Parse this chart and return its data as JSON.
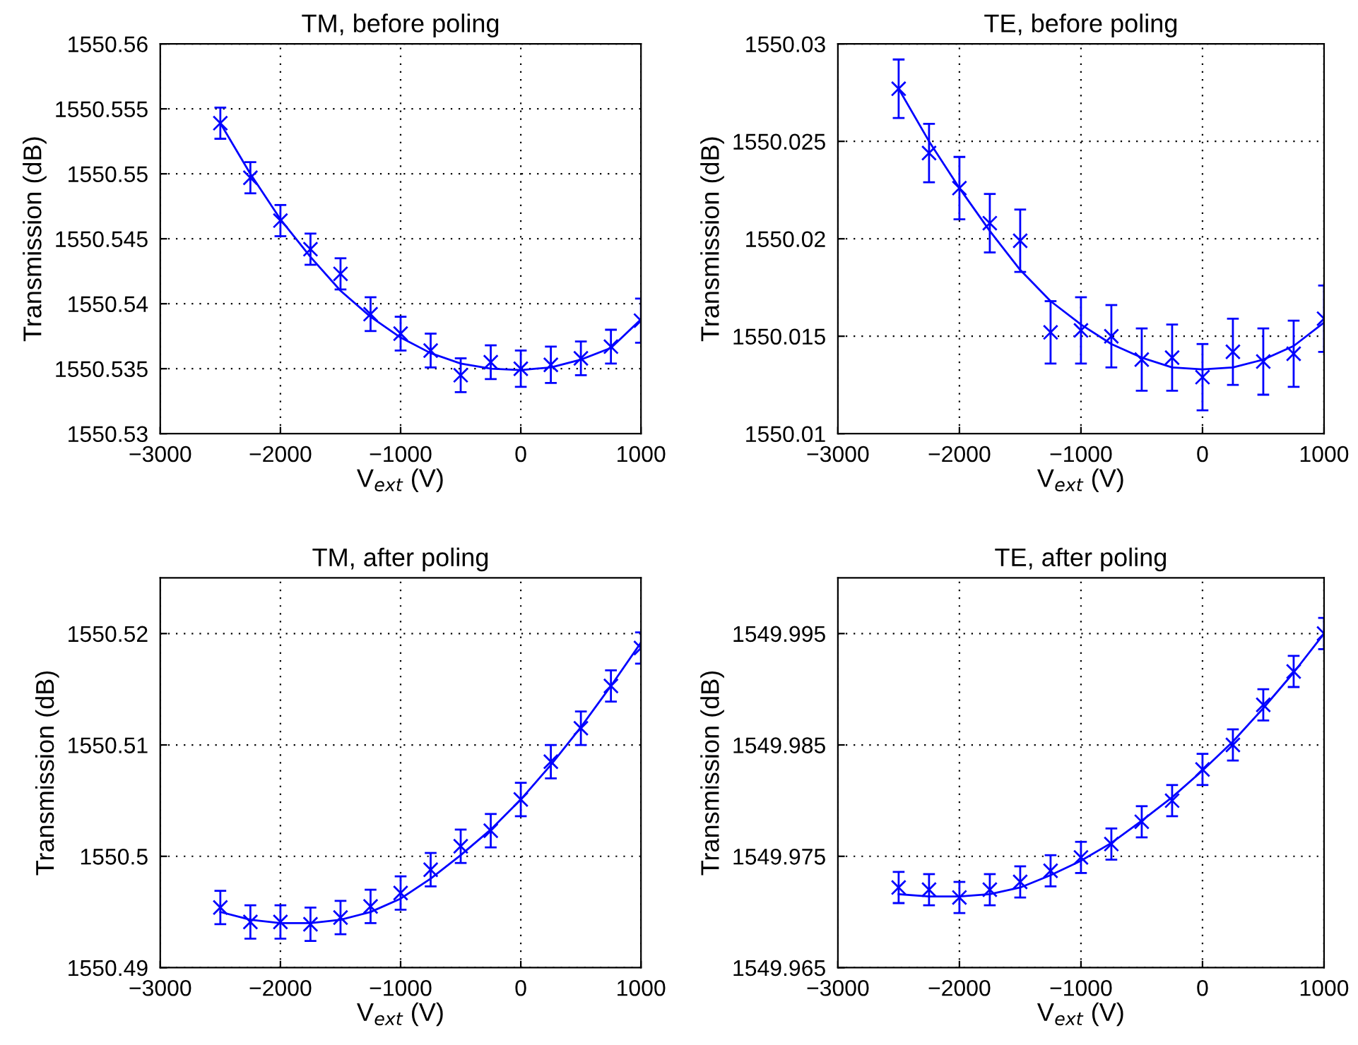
{
  "chart_data": [
    {
      "type": "scatter",
      "title": "TM, before poling",
      "xlabel": "V$_{ext}$ (V)",
      "ylabel": "Transmission (dB)",
      "xlim": [
        -3000,
        1000
      ],
      "xticks": [
        {
          "value": -3000,
          "label": "−3000"
        },
        {
          "value": -2000,
          "label": "−2000"
        },
        {
          "value": -1000,
          "label": "−1000"
        },
        0,
        1000
      ],
      "ylim": [
        1550.53,
        1550.56
      ],
      "yticks": [
        1550.53,
        1550.535,
        1550.54,
        1550.545,
        1550.55,
        1550.555,
        1550.56
      ],
      "grid": true,
      "series": [
        {
          "color": "#0000ff",
          "marker": "cross",
          "x": [
            -2500,
            -2250,
            -2000,
            -1750,
            -1500,
            -1250,
            -1000,
            -750,
            -500,
            -250,
            0,
            250,
            500,
            750,
            1000
          ],
          "values": [
            1550.5539,
            1550.5497,
            1550.5464,
            1550.5442,
            1550.5423,
            1550.5392,
            1550.5377,
            1550.5364,
            1550.5345,
            1550.5355,
            1550.535,
            1550.5353,
            1550.5358,
            1550.5367,
            1550.5387
          ],
          "errors": [
            0.0012,
            0.0012,
            0.0012,
            0.0012,
            0.0012,
            0.0013,
            0.0013,
            0.0013,
            0.0013,
            0.0013,
            0.0014,
            0.0014,
            0.0013,
            0.0013,
            0.0017
          ]
        },
        {
          "type": "line",
          "color": "#0000ff",
          "x": [
            -2500,
            -2250,
            -2000,
            -1750,
            -1500,
            -1250,
            -1000,
            -750,
            -500,
            -250,
            0,
            250,
            500,
            750,
            1000
          ],
          "values": [
            1550.5539,
            1550.55,
            1550.5465,
            1550.5436,
            1550.541,
            1550.539,
            1550.5374,
            1550.5362,
            1550.5354,
            1550.535,
            1550.5349,
            1550.5351,
            1550.5357,
            1550.5366,
            1550.5388
          ]
        }
      ]
    },
    {
      "type": "scatter",
      "title": "TE, before poling",
      "xlabel": "V$_{ext}$ (V)",
      "ylabel": "Transmission (dB)",
      "xlim": [
        -3000,
        1000
      ],
      "xticks": [
        {
          "value": -3000,
          "label": "−3000"
        },
        {
          "value": -2000,
          "label": "−2000"
        },
        {
          "value": -1000,
          "label": "−1000"
        },
        0,
        1000
      ],
      "ylim": [
        1550.01,
        1550.03
      ],
      "yticks": [
        1550.01,
        1550.015,
        1550.02,
        1550.025,
        1550.03
      ],
      "grid": true,
      "series": [
        {
          "color": "#0000ff",
          "marker": "cross",
          "x": [
            -2500,
            -2250,
            -2000,
            -1750,
            -1500,
            -1250,
            -1000,
            -750,
            -500,
            -250,
            0,
            250,
            500,
            750,
            1000
          ],
          "values": [
            1550.0277,
            1550.0244,
            1550.0226,
            1550.0208,
            1550.0199,
            1550.0152,
            1550.0153,
            1550.015,
            1550.0138,
            1550.0139,
            1550.0129,
            1550.0142,
            1550.0137,
            1550.0141,
            1550.0159
          ],
          "errors": [
            0.0015,
            0.0015,
            0.0016,
            0.0015,
            0.0016,
            0.0016,
            0.0017,
            0.0016,
            0.0016,
            0.0017,
            0.0017,
            0.0017,
            0.0017,
            0.0017,
            0.0017
          ]
        },
        {
          "type": "line",
          "color": "#0000ff",
          "x": [
            -2500,
            -2250,
            -2000,
            -1750,
            -1500,
            -1250,
            -1000,
            -750,
            -500,
            -250,
            0,
            250,
            500,
            750,
            1000
          ],
          "values": [
            1550.0277,
            1550.025,
            1550.0226,
            1550.0204,
            1550.0184,
            1550.0168,
            1550.0156,
            1550.0146,
            1550.0139,
            1550.0134,
            1550.0133,
            1550.0134,
            1550.0138,
            1550.0145,
            1550.0157
          ]
        }
      ]
    },
    {
      "type": "scatter",
      "title": "TM, after poling",
      "xlabel": "V$_{ext}$ (V)",
      "ylabel": "Transmission (dB)",
      "xlim": [
        -3000,
        1000
      ],
      "xticks": [
        {
          "value": -3000,
          "label": "−3000"
        },
        {
          "value": -2000,
          "label": "−2000"
        },
        {
          "value": -1000,
          "label": "−1000"
        },
        0,
        1000
      ],
      "ylim": [
        1550.49,
        1550.525
      ],
      "yticks": [
        1550.49,
        1550.5,
        1550.51,
        1550.52
      ],
      "grid": true,
      "series": [
        {
          "color": "#0000ff",
          "marker": "cross",
          "x": [
            -2500,
            -2250,
            -2000,
            -1750,
            -1500,
            -1250,
            -1000,
            -750,
            -500,
            -250,
            0,
            250,
            500,
            750,
            1000
          ],
          "values": [
            1550.4954,
            1550.4941,
            1550.4941,
            1550.4939,
            1550.4945,
            1550.4955,
            1550.4967,
            1550.4988,
            1550.5009,
            1550.5023,
            1550.5051,
            1550.5085,
            1550.5115,
            1550.5153,
            1550.5187
          ],
          "errors": [
            0.0015,
            0.0015,
            0.0015,
            0.0015,
            0.0015,
            0.0015,
            0.0015,
            0.0015,
            0.0015,
            0.0015,
            0.0015,
            0.0015,
            0.0015,
            0.0014,
            0.0014
          ]
        },
        {
          "type": "line",
          "color": "#0000ff",
          "x": [
            -2500,
            -2250,
            -2000,
            -1750,
            -1500,
            -1250,
            -1000,
            -750,
            -500,
            -250,
            0,
            250,
            500,
            750,
            1000
          ],
          "values": [
            1550.495,
            1550.4943,
            1550.494,
            1550.494,
            1550.4943,
            1550.495,
            1550.4962,
            1550.498,
            1550.5001,
            1550.5024,
            1550.5051,
            1550.5082,
            1550.5116,
            1550.5153,
            1550.5192
          ]
        }
      ]
    },
    {
      "type": "scatter",
      "title": "TE, after poling",
      "xlabel": "V$_{ext}$ (V)",
      "ylabel": "Transmission (dB)",
      "xlim": [
        -3000,
        1000
      ],
      "xticks": [
        {
          "value": -3000,
          "label": "−3000"
        },
        {
          "value": -2000,
          "label": "−2000"
        },
        {
          "value": -1000,
          "label": "−1000"
        },
        0,
        1000
      ],
      "ylim": [
        1549.965,
        1550.0
      ],
      "yticks": [
        1549.965,
        1549.975,
        1549.985,
        1549.995
      ],
      "grid": true,
      "series": [
        {
          "color": "#0000ff",
          "marker": "cross",
          "x": [
            -2500,
            -2250,
            -2000,
            -1750,
            -1500,
            -1250,
            -1000,
            -750,
            -500,
            -250,
            0,
            250,
            500,
            750,
            1000
          ],
          "values": [
            1549.9722,
            1549.972,
            1549.9713,
            1549.972,
            1549.9727,
            1549.9737,
            1549.9749,
            1549.9761,
            1549.9781,
            1549.98,
            1549.9828,
            1549.985,
            1549.9886,
            1549.9916,
            1549.995
          ],
          "errors": [
            0.0014,
            0.0014,
            0.0014,
            0.0014,
            0.0014,
            0.0014,
            0.0014,
            0.0014,
            0.0014,
            0.0014,
            0.0014,
            0.0014,
            0.0014,
            0.0014,
            0.0014
          ]
        },
        {
          "type": "line",
          "color": "#0000ff",
          "x": [
            -2500,
            -2250,
            -2000,
            -1750,
            -1500,
            -1250,
            -1000,
            -750,
            -500,
            -250,
            0,
            250,
            500,
            750,
            1000
          ],
          "values": [
            1549.9716,
            1549.9714,
            1549.9714,
            1549.9716,
            1549.9722,
            1549.9733,
            1549.9746,
            1549.9762,
            1549.9782,
            1549.9803,
            1549.9827,
            1549.9853,
            1549.9883,
            1549.9915,
            1549.995
          ]
        }
      ]
    }
  ]
}
